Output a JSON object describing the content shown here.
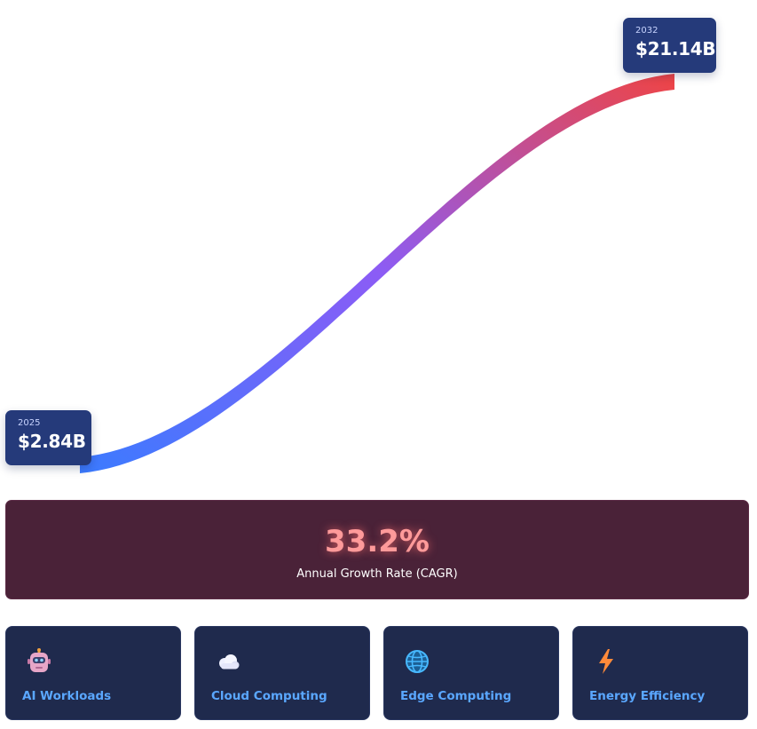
{
  "chart_data": {
    "type": "area",
    "x": [
      "2025",
      "2032"
    ],
    "values": [
      2.84,
      21.14
    ],
    "start": {
      "year": "2025",
      "label": "$2.84B"
    },
    "end": {
      "year": "2032",
      "label": "$21.14B"
    },
    "colors": {
      "start": "#3b7bff",
      "middle": "#8b5cf6",
      "end": "#ef4444"
    }
  },
  "cagr": {
    "value": "33.2%",
    "label": "Annual Growth Rate (CAGR)"
  },
  "features": [
    {
      "icon": "robot-icon",
      "label": "AI Workloads"
    },
    {
      "icon": "cloud-icon",
      "label": "Cloud Computing"
    },
    {
      "icon": "globe-icon",
      "label": "Edge Computing"
    },
    {
      "icon": "lightning-icon",
      "label": "Energy Efficiency"
    }
  ]
}
